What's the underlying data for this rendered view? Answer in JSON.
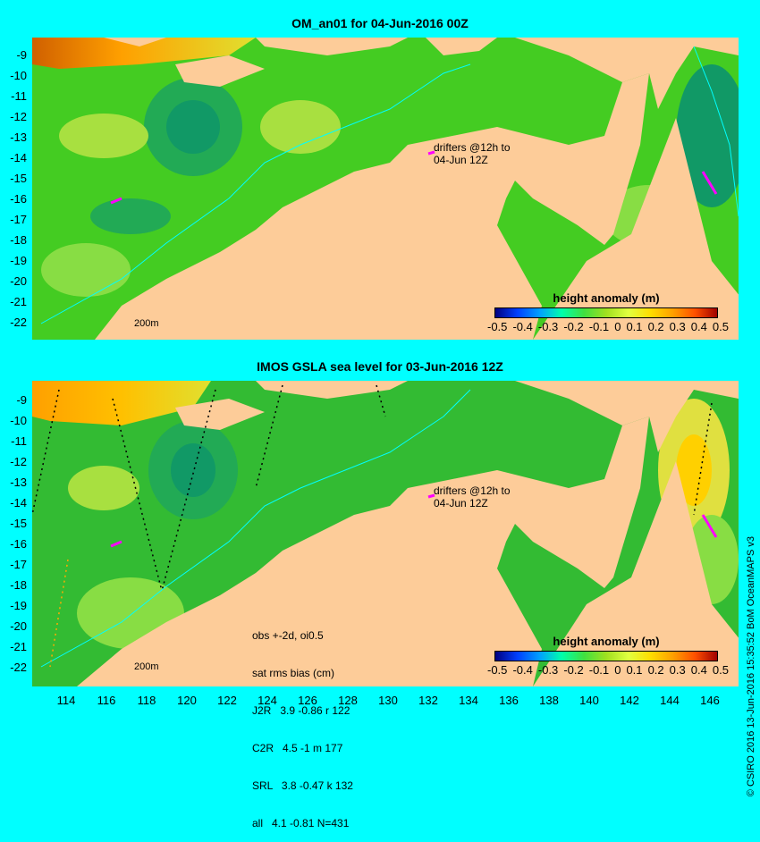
{
  "top_panel": {
    "title": "OM_an01 for 04-Jun-2016 00Z",
    "y_ticks": [
      "-9",
      "-10",
      "-11",
      "-12",
      "-13",
      "-14",
      "-15",
      "-16",
      "-17",
      "-18",
      "-19",
      "-20",
      "-21",
      "-22"
    ],
    "legend_title": "height anomaly (m)",
    "colorbar_labels": [
      "-0.5",
      "-0.4",
      "-0.3",
      "-0.2",
      "-0.1",
      "0",
      "0.1",
      "0.2",
      "0.3",
      "0.4",
      "0.5"
    ],
    "drifters_label_line1": "drifters @12h to",
    "drifters_label_line2": "04-Jun 12Z",
    "scale_label": "200m"
  },
  "bottom_panel": {
    "title": "IMOS GSLA sea level  for 03-Jun-2016 12Z",
    "y_ticks": [
      "-9",
      "-10",
      "-11",
      "-12",
      "-13",
      "-14",
      "-15",
      "-16",
      "-17",
      "-18",
      "-19",
      "-20",
      "-21",
      "-22"
    ],
    "x_ticks": [
      "114",
      "116",
      "118",
      "120",
      "122",
      "124",
      "126",
      "128",
      "130",
      "132",
      "134",
      "136",
      "138",
      "140",
      "142",
      "144",
      "146"
    ],
    "legend_title": "height anomaly (m)",
    "colorbar_labels": [
      "-0.5",
      "-0.4",
      "-0.3",
      "-0.2",
      "-0.1",
      "0",
      "0.1",
      "0.2",
      "0.3",
      "0.4",
      "0.5"
    ],
    "drifters_label_line1": "drifters @12h to",
    "drifters_label_line2": "04-Jun 12Z",
    "scale_label": "200m",
    "stats": {
      "line1": "obs +-2d, oi0.5",
      "line2": "sat rms bias (cm)",
      "line3": "J2R   3.9 -0.86 r 122",
      "line4": "C2R   4.5 -1 m 177",
      "line5": "SRL   3.8 -0.47 k 132",
      "line6": "all   4.1 -0.81 N=431"
    }
  },
  "credit": "© CSIRO 2016  13-Jun-2016 15:35:52 BoM OceanMAPS v3",
  "colors": {
    "background": "#00ffff",
    "land": "#fdcc99",
    "ocean_base": "#33cc33",
    "drifter": "#ff00ff"
  }
}
